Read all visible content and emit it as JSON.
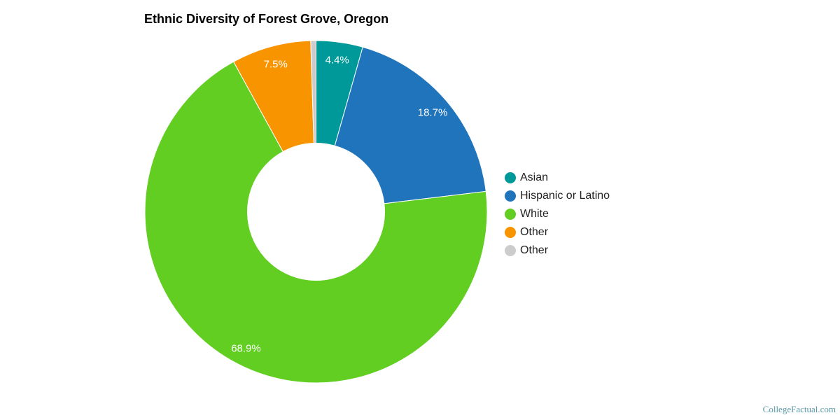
{
  "chart_data": {
    "type": "pie",
    "donut": true,
    "title": "Ethnic Diversity of Forest Grove, Oregon",
    "slices": [
      {
        "label": "Asian",
        "value": 4.4,
        "display": "4.4%",
        "color": "#009999"
      },
      {
        "label": "Hispanic or Latino",
        "value": 18.7,
        "display": "18.7%",
        "color": "#1f74bb"
      },
      {
        "label": "White",
        "value": 68.9,
        "display": "68.9%",
        "color": "#61ce21"
      },
      {
        "label": "Other",
        "value": 7.5,
        "display": "7.5%",
        "color": "#f89400"
      },
      {
        "label": "Other",
        "value": 0.5,
        "display": "",
        "color": "#cccccc"
      }
    ],
    "legend_position": "right"
  },
  "watermark": "CollegeFactual.com"
}
